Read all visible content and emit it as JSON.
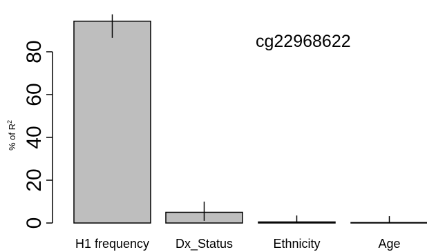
{
  "chart_data": {
    "type": "bar",
    "categories": [
      "H1 frequency",
      "Dx_Status",
      "Ethnicity",
      "Age"
    ],
    "values": [
      94.3,
      5,
      0.5,
      0.2
    ],
    "error_low": [
      86.5,
      1,
      0,
      0
    ],
    "error_high": [
      97.5,
      10,
      3.5,
      3.2
    ],
    "ylabel": "% of R",
    "ylabel_superscript": "2",
    "annotation": "cg22968622",
    "yticks": [
      0,
      20,
      40,
      60,
      80
    ],
    "ylim": [
      0,
      100
    ],
    "bar_color": "#bebebe",
    "grid": false,
    "legend": "none"
  }
}
